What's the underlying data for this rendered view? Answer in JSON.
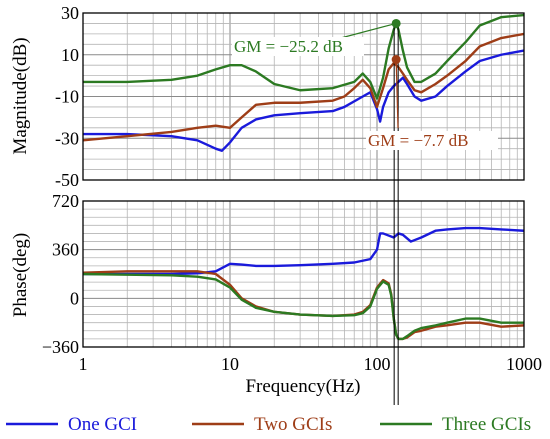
{
  "chart_data": {
    "type": "line",
    "title": "",
    "xlabel": "Frequency(Hz)",
    "xscale": "log",
    "xlim": [
      1,
      1000
    ],
    "x_tick_labels": [
      "1",
      "10",
      "100",
      "1000"
    ],
    "grid": true,
    "legend_position": "bottom",
    "colors": {
      "One GCI": "#1a1adb",
      "Two GCIs": "#9e3d17",
      "Three GCIs": "#2c7a22"
    },
    "panels": [
      {
        "id": "magnitude",
        "ylabel": "Magnitude(dB)",
        "ylim": [
          -50,
          30
        ],
        "y_tick_labels": [
          "30",
          "10",
          "-10",
          "-30",
          "-50"
        ],
        "series": [
          {
            "name": "One GCI",
            "x": [
              1,
              2,
              4,
              6,
              8,
              8.8,
              10,
              12,
              15,
              20,
              30,
              50,
              60,
              80,
              90,
              100,
              105,
              110,
              120,
              130,
              140,
              150,
              160,
              180,
              200,
              250,
              300,
              400,
              500,
              700,
              1000
            ],
            "y": [
              -28,
              -28,
              -29,
              -31,
              -35,
              -36,
              -32,
              -25,
              -21,
              -19,
              -18,
              -17,
              -15,
              -10,
              -8,
              -16,
              -22,
              -15,
              -8,
              -5,
              -3,
              -1,
              -4,
              -10,
              -12,
              -10,
              -5,
              2,
              7,
              10,
              12
            ]
          },
          {
            "name": "Two GCIs",
            "x": [
              1,
              2,
              4,
              6,
              8,
              10,
              12,
              15,
              20,
              30,
              50,
              60,
              70,
              80,
              90,
              100,
              110,
              120,
              130,
              140,
              150,
              160,
              180,
              200,
              250,
              300,
              400,
              500,
              700,
              1000
            ],
            "y": [
              -31,
              -29,
              -27,
              -25,
              -24,
              -25,
              -20,
              -14,
              -13,
              -13,
              -12,
              -10,
              -6,
              -2,
              -6,
              -15,
              -6,
              3,
              6,
              4,
              1,
              -2,
              -7,
              -8,
              -4,
              0,
              7,
              14,
              18,
              20
            ]
          },
          {
            "name": "Three GCIs",
            "x": [
              1,
              2,
              4,
              6,
              8,
              10,
              12,
              15,
              20,
              30,
              50,
              70,
              80,
              90,
              100,
              110,
              120,
              130,
              135,
              140,
              150,
              160,
              180,
              200,
              250,
              300,
              400,
              500,
              700,
              1000
            ],
            "y": [
              -3,
              -3,
              -2,
              0,
              3,
              5,
              5,
              2,
              -4,
              -7,
              -6,
              -3,
              1,
              -3,
              -11,
              -1,
              13,
              22,
              25,
              22,
              12,
              4,
              -3,
              -3,
              1,
              7,
              16,
              24,
              28,
              29
            ]
          }
        ],
        "annotations": [
          {
            "text": "GM = −25.2 dB",
            "series": "Three GCIs",
            "x": 135,
            "y": 25
          },
          {
            "text": "GM = −7.7 dB",
            "series": "Two GCIs",
            "x": 135,
            "y": 7.7
          }
        ]
      },
      {
        "id": "phase",
        "ylabel": "Phase(deg)",
        "ylim": [
          -360,
          720
        ],
        "y_tick_labels": [
          "720",
          "360",
          "0",
          "−360"
        ],
        "series": [
          {
            "name": "One GCI",
            "x": [
              1,
              2,
              4,
              6,
              8,
              10,
              12,
              15,
              20,
              30,
              50,
              70,
              90,
              100,
              105,
              110,
              130,
              140,
              150,
              170,
              200,
              250,
              300,
              400,
              500,
              700,
              1000
            ],
            "y": [
              180,
              180,
              180,
              185,
              200,
              255,
              250,
              240,
              240,
              245,
              255,
              265,
              290,
              360,
              480,
              480,
              450,
              480,
              470,
              420,
              450,
              500,
              510,
              520,
              520,
              510,
              500
            ]
          },
          {
            "name": "Two GCIs",
            "x": [
              1,
              2,
              4,
              6,
              8,
              10,
              12,
              15,
              20,
              30,
              50,
              70,
              80,
              90,
              100,
              110,
              120,
              125,
              130,
              135,
              140,
              150,
              160,
              180,
              200,
              250,
              300,
              400,
              500,
              700,
              1000
            ],
            "y": [
              190,
              200,
              200,
              200,
              180,
              100,
              0,
              -60,
              -100,
              -120,
              -130,
              -120,
              -100,
              -50,
              80,
              135,
              110,
              30,
              -150,
              -270,
              -300,
              -300,
              -290,
              -250,
              -240,
              -210,
              -200,
              -180,
              -180,
              -210,
              -200
            ]
          },
          {
            "name": "Three GCIs",
            "x": [
              1,
              2,
              4,
              6,
              8,
              10,
              12,
              15,
              20,
              30,
              50,
              70,
              80,
              90,
              100,
              110,
              120,
              125,
              130,
              135,
              140,
              150,
              160,
              180,
              200,
              250,
              300,
              400,
              500,
              700,
              1000
            ],
            "y": [
              180,
              175,
              170,
              160,
              140,
              80,
              -10,
              -70,
              -100,
              -120,
              -130,
              -125,
              -110,
              -60,
              70,
              125,
              100,
              20,
              -150,
              -270,
              -300,
              -300,
              -280,
              -240,
              -220,
              -200,
              -180,
              -150,
              -150,
              -180,
              -180
            ]
          }
        ]
      }
    ]
  }
}
